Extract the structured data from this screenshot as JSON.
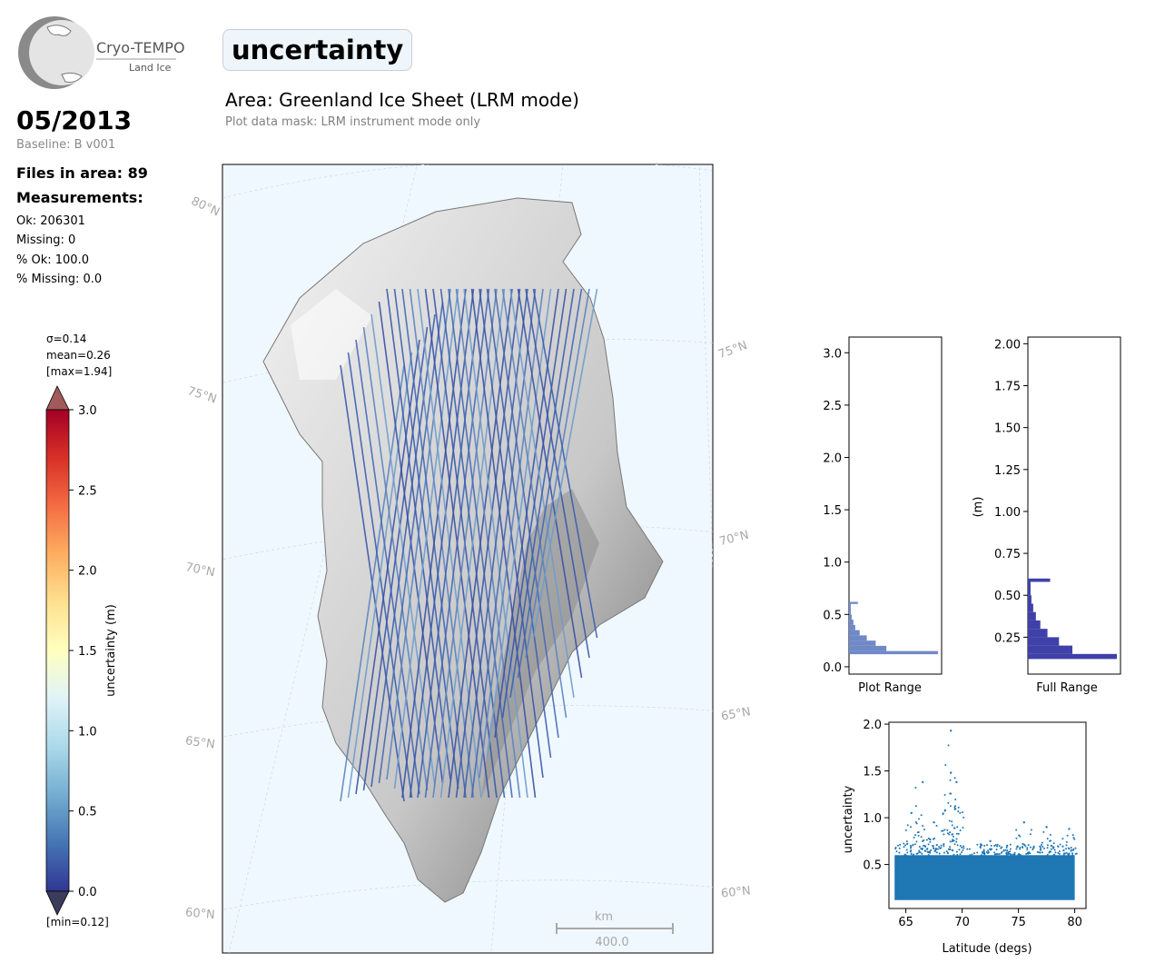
{
  "logo": {
    "name": "Cryo-TEMPO",
    "subtitle": "Land Ice"
  },
  "parameter": "uncertainty",
  "area_title": "Area: Greenland Ice Sheet (LRM mode)",
  "mask_note": "Plot data mask: LRM instrument mode only",
  "date": "05/2013",
  "baseline": "Baseline: B v001",
  "files_in_area": "Files in area: 89",
  "measurements_title": "Measurements:",
  "stats": {
    "ok": "Ok: 206301",
    "missing": "Missing: 0",
    "pct_ok": "% Ok: 100.0",
    "pct_missing": "% Missing: 0.0"
  },
  "colorbar": {
    "sigma": "σ=0.14",
    "mean": "mean=0.26",
    "max": "[max=1.94]",
    "min": "[min=0.12]",
    "label": "uncertainty (m)",
    "vmin": 0.0,
    "vmax": 3.0,
    "ticks": [
      "3.0",
      "2.5",
      "2.0",
      "1.5",
      "1.0",
      "0.5",
      "0.0"
    ],
    "colors": [
      "#313695",
      "#4575b4",
      "#74add1",
      "#abd9e9",
      "#e0f3f8",
      "#ffffbf",
      "#fee090",
      "#fdae61",
      "#f46d43",
      "#d73027",
      "#a50026"
    ],
    "under_color": "#3b3b5c",
    "over_color": "#a05a5a"
  },
  "map": {
    "lat_labels": [
      "80°N",
      "75°N",
      "70°N",
      "65°N",
      "60°N"
    ],
    "scalebar_unit": "km",
    "scalebar_value": "400.0",
    "background": "#f0f8ff",
    "ice_color": "#dcdcdc"
  },
  "chart_data": [
    {
      "type": "bar",
      "orientation": "horizontal",
      "xlabel": "Plot Range",
      "ylim": [
        -0.07,
        3.15
      ],
      "yticks": [
        "0.0",
        "0.5",
        "1.0",
        "1.5",
        "2.0",
        "2.5",
        "3.0"
      ],
      "bins": [
        {
          "y0": 0.12,
          "y1": 0.15,
          "count": 1.0
        },
        {
          "y0": 0.15,
          "y1": 0.2,
          "count": 0.42
        },
        {
          "y0": 0.2,
          "y1": 0.25,
          "count": 0.3
        },
        {
          "y0": 0.25,
          "y1": 0.3,
          "count": 0.2
        },
        {
          "y0": 0.3,
          "y1": 0.35,
          "count": 0.12
        },
        {
          "y0": 0.35,
          "y1": 0.4,
          "count": 0.07
        },
        {
          "y0": 0.4,
          "y1": 0.45,
          "count": 0.05
        },
        {
          "y0": 0.45,
          "y1": 0.5,
          "count": 0.03
        },
        {
          "y0": 0.5,
          "y1": 0.6,
          "count": 0.02
        },
        {
          "y0": 0.6,
          "y1": 0.62,
          "count": 0.1
        }
      ]
    },
    {
      "type": "bar",
      "orientation": "horizontal",
      "xlabel": "Full Range",
      "ylabel": "(m)",
      "ylim": [
        0.03,
        2.04
      ],
      "yticks": [
        "0.25",
        "0.50",
        "0.75",
        "1.00",
        "1.25",
        "1.50",
        "1.75",
        "2.00"
      ],
      "bins": [
        {
          "y0": 0.12,
          "y1": 0.15,
          "count": 1.0
        },
        {
          "y0": 0.15,
          "y1": 0.2,
          "count": 0.5
        },
        {
          "y0": 0.2,
          "y1": 0.25,
          "count": 0.35
        },
        {
          "y0": 0.25,
          "y1": 0.3,
          "count": 0.22
        },
        {
          "y0": 0.3,
          "y1": 0.35,
          "count": 0.14
        },
        {
          "y0": 0.35,
          "y1": 0.4,
          "count": 0.09
        },
        {
          "y0": 0.4,
          "y1": 0.45,
          "count": 0.06
        },
        {
          "y0": 0.45,
          "y1": 0.5,
          "count": 0.04
        },
        {
          "y0": 0.5,
          "y1": 0.58,
          "count": 0.03
        },
        {
          "y0": 0.58,
          "y1": 0.6,
          "count": 0.25
        }
      ]
    },
    {
      "type": "scatter",
      "xlabel": "Latitude (degs)",
      "ylabel": "uncertainty",
      "xlim": [
        63.5,
        81.0
      ],
      "ylim": [
        0.03,
        2.02
      ],
      "xticks": [
        65,
        70,
        75,
        80
      ],
      "yticks": [
        "0.5",
        "1.0",
        "1.5",
        "2.0"
      ],
      "color": "#1f77b4",
      "x_range": [
        64.0,
        80.0
      ],
      "band": [
        0.12,
        0.6
      ],
      "peaks": [
        {
          "x": 66.5,
          "y": 1.38
        },
        {
          "x": 65.5,
          "y": 1.05
        },
        {
          "x": 69.0,
          "y": 1.48
        },
        {
          "x": 69.5,
          "y": 1.38
        },
        {
          "x": 69.0,
          "y": 1.93
        },
        {
          "x": 67.5,
          "y": 0.95
        },
        {
          "x": 75.5,
          "y": 0.95
        },
        {
          "x": 77.5,
          "y": 0.9
        },
        {
          "x": 79.5,
          "y": 0.88
        },
        {
          "x": 72.5,
          "y": 0.75
        },
        {
          "x": 74.0,
          "y": 0.7
        }
      ]
    }
  ]
}
